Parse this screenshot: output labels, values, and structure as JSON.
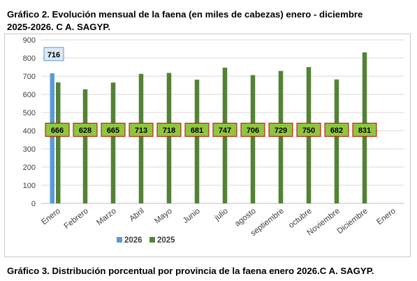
{
  "header": {
    "title_line1": "Gráfico 2. Evolución mensual de la faena (en miles de cabezas) enero - diciembre",
    "title_line2": "2025-2026. C A. SAGYP."
  },
  "footer": {
    "caption": "Gráfico 3. Distribución porcentual por provincia de la faena enero 2026.C A. SAGYP."
  },
  "chart_data": {
    "type": "bar",
    "categories": [
      "Enero",
      "Febrero",
      "Marzo",
      "Abril",
      "Mayo",
      "Junio",
      "julio",
      "agosto",
      "septiembre",
      "octubre",
      "Noviembre",
      "Diciembre",
      "Enero"
    ],
    "series": [
      {
        "name": "2026",
        "color": "#5b9bd5",
        "values": [
          716,
          null,
          null,
          null,
          null,
          null,
          null,
          null,
          null,
          null,
          null,
          null,
          null
        ]
      },
      {
        "name": "2025",
        "color": "#548235",
        "values": [
          666,
          628,
          665,
          713,
          718,
          681,
          747,
          706,
          729,
          750,
          682,
          831,
          null
        ]
      }
    ],
    "ylim": [
      0,
      900
    ],
    "yticks": [
      0,
      100,
      200,
      300,
      400,
      500,
      600,
      700,
      800,
      900
    ],
    "grid": true,
    "legend_position": "bottom",
    "data_label_colors": {
      "2026_fill": "#dbe8f5",
      "2026_border": "#5b9bd5",
      "2025_fill": "#8fc63f",
      "2025_border": "#c00000"
    }
  }
}
